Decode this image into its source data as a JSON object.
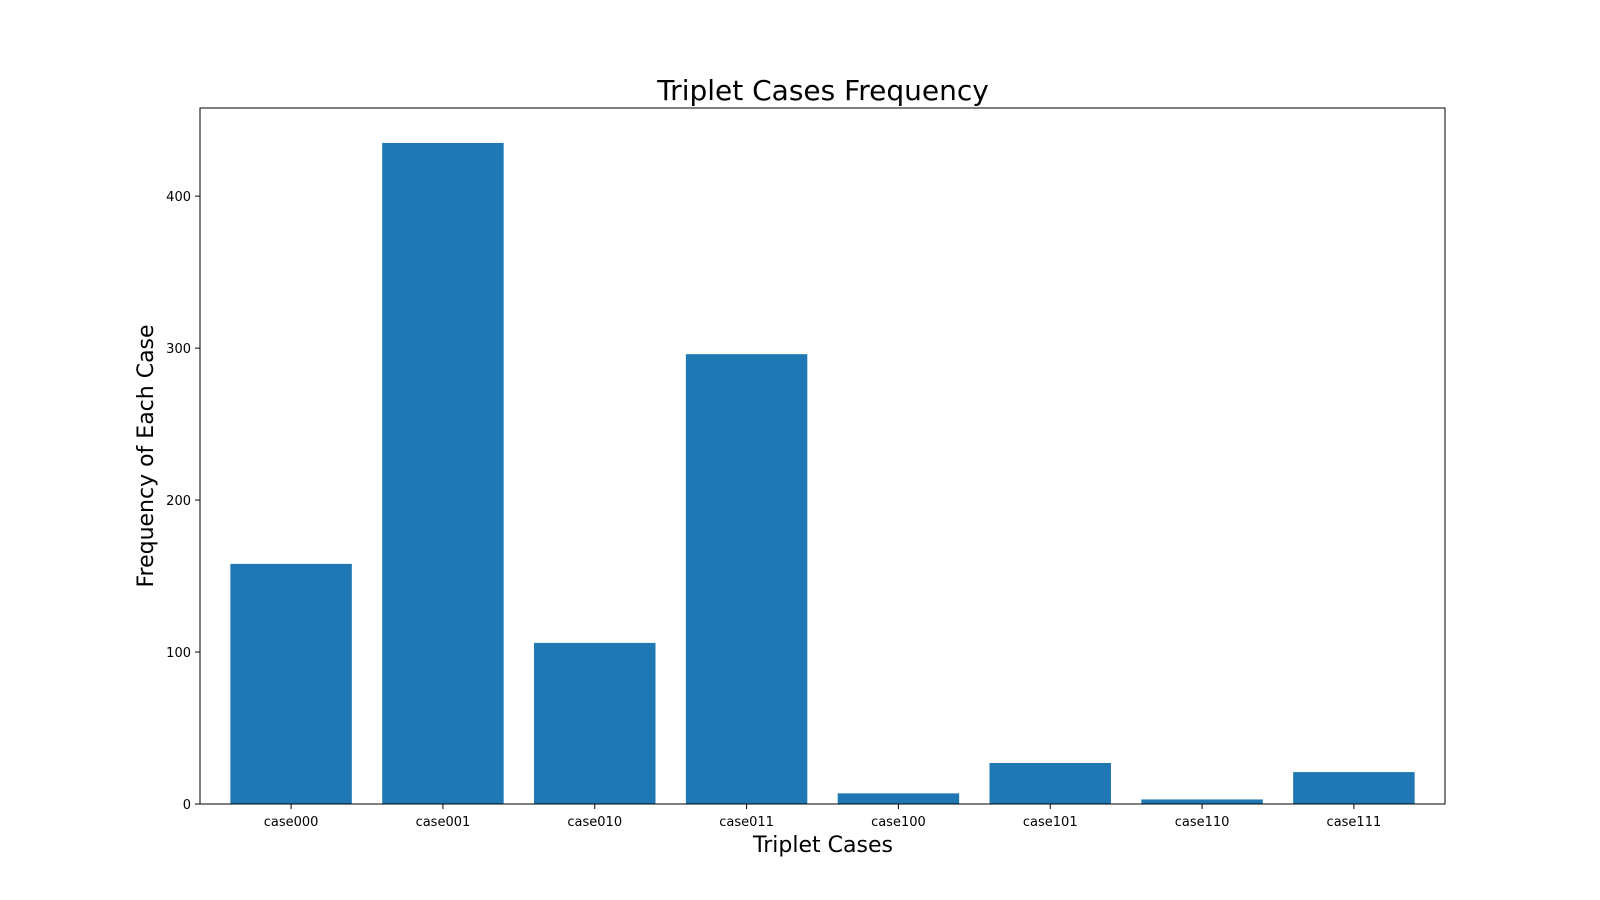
{
  "chart_data": {
    "type": "bar",
    "title": "Triplet Cases Frequency",
    "xlabel": "Triplet Cases",
    "ylabel": "Frequency of Each Case",
    "categories": [
      "case000",
      "case001",
      "case010",
      "case011",
      "case100",
      "case101",
      "case110",
      "case111"
    ],
    "values": [
      158,
      435,
      106,
      296,
      7,
      27,
      3,
      21
    ],
    "ylim": [
      0,
      458
    ],
    "yticks": [
      0,
      100,
      200,
      300,
      400
    ],
    "grid": false,
    "legend": "none",
    "bar_color": "#1f77b4"
  }
}
